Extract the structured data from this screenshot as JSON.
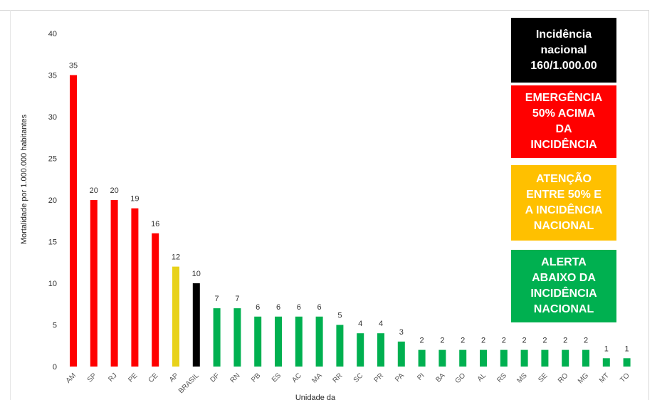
{
  "chart_data": {
    "type": "bar",
    "ylabel": "Mortalidade  por 1.000.000 habitantes",
    "xlabel": "Unidade da",
    "ylim": [
      0,
      40
    ],
    "yticks": [
      "0",
      "5",
      "10",
      "15",
      "20",
      "25",
      "30",
      "35",
      "40"
    ],
    "grid": false,
    "categories": [
      "AM",
      "SP",
      "RJ",
      "PE",
      "CE",
      "AP",
      "BRASIL",
      "DF",
      "RN",
      "PB",
      "ES",
      "AC",
      "MA",
      "RR",
      "SC",
      "PR",
      "PA",
      "PI",
      "BA",
      "GO",
      "AL",
      "RS",
      "MS",
      "SE",
      "RO",
      "MG",
      "MT",
      "TO"
    ],
    "values": [
      35,
      20,
      20,
      19,
      16,
      12,
      10,
      7,
      7,
      6,
      6,
      6,
      6,
      5,
      4,
      4,
      3,
      2,
      2,
      2,
      2,
      2,
      2,
      2,
      2,
      2,
      1,
      1
    ],
    "bar_levels": [
      "emergencia",
      "emergencia",
      "emergencia",
      "emergencia",
      "emergencia",
      "atencao",
      "nacional",
      "alerta",
      "alerta",
      "alerta",
      "alerta",
      "alerta",
      "alerta",
      "alerta",
      "alerta",
      "alerta",
      "alerta",
      "alerta",
      "alerta",
      "alerta",
      "alerta",
      "alerta",
      "alerta",
      "alerta",
      "alerta",
      "alerta",
      "alerta",
      "alerta"
    ],
    "colors": {
      "nacional": "#000000",
      "emergencia": "#ff0000",
      "atencao": "#ffc000",
      "alerta": "#00b050",
      "atencao_bar": "#e8d21a"
    }
  },
  "legend": {
    "nacional": {
      "text": "Incidência nacional 160/1.000.00",
      "lines": [
        "Incidência",
        "nacional",
        "160/1.000.00"
      ],
      "color": "#000000"
    },
    "emergencia": {
      "text": "EMERGÊNCIA 50% ACIMA DA INCIDÊNCIA",
      "lines": [
        "EMERGÊNCIA",
        "50% ACIMA",
        "DA",
        "INCIDÊNCIA"
      ],
      "color": "#ff0000"
    },
    "atencao": {
      "text": "ATENÇÃO ENTRE 50% E A INCIDÊNCIA NACIONAL",
      "lines": [
        "ATENÇÃO",
        "ENTRE 50% E",
        "A INCIDÊNCIA",
        "NACIONAL"
      ],
      "color": "#ffc000"
    },
    "alerta": {
      "text": "ALERTA ABAIXO DA INCIDÊNCIA NACIONAL",
      "lines": [
        "ALERTA",
        "ABAIXO DA",
        "INCIDÊNCIA",
        "NACIONAL"
      ],
      "color": "#00b050"
    }
  }
}
